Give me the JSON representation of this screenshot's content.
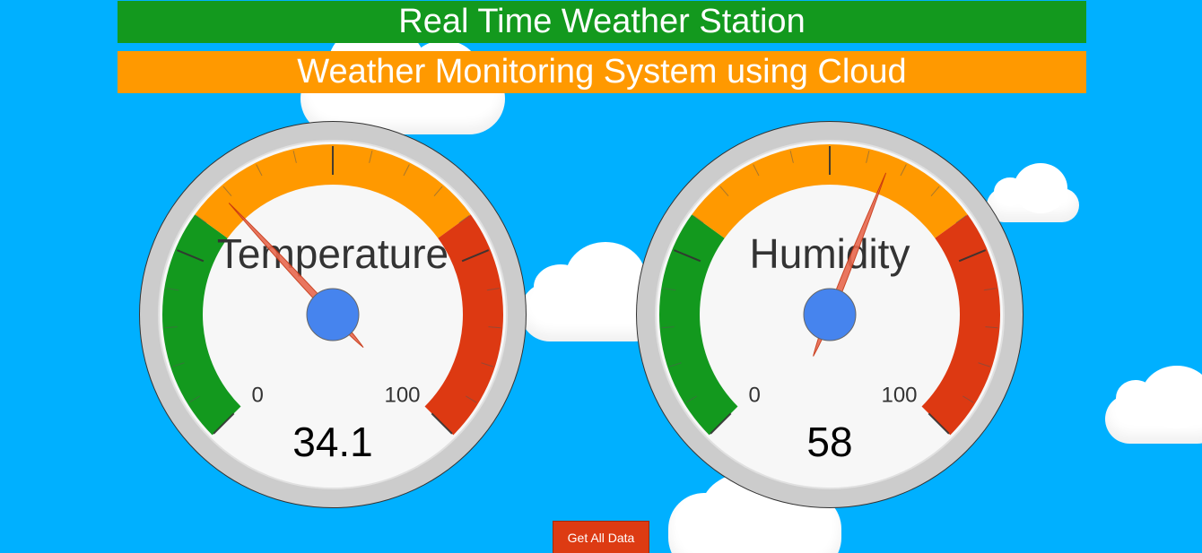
{
  "header": {
    "title": "Real Time Weather Station",
    "subtitle": "Weather Monitoring System using Cloud"
  },
  "colors": {
    "background": "#00b0ff",
    "title_bar": "#13991e",
    "subtitle_bar": "#ff9900",
    "gauge_green": "#13991e",
    "gauge_yellow": "#ff9900",
    "gauge_red": "#dd3912",
    "needle": "#e8694f",
    "needle_hub": "#4684ee",
    "button": "#dd3b13"
  },
  "gauges": [
    {
      "label": "Temperature",
      "value": 34.1,
      "value_text": "34.1",
      "min": 0,
      "max": 100,
      "min_label": "0",
      "max_label": "100",
      "bands": {
        "green": [
          0,
          30
        ],
        "yellow": [
          30,
          70
        ],
        "red": [
          70,
          100
        ]
      }
    },
    {
      "label": "Humidity",
      "value": 58,
      "value_text": "58",
      "min": 0,
      "max": 100,
      "min_label": "0",
      "max_label": "100",
      "bands": {
        "green": [
          0,
          30
        ],
        "yellow": [
          30,
          70
        ],
        "red": [
          70,
          100
        ]
      }
    }
  ],
  "actions": {
    "get_all_label": "Get All Data"
  }
}
